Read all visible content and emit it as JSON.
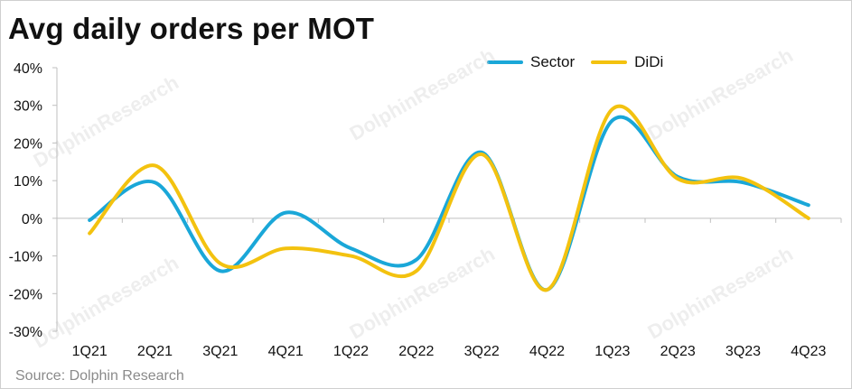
{
  "title": "Avg daily orders per MOT",
  "source": "Source: Dolphin Research",
  "legend": [
    {
      "name": "Sector",
      "color": "#1aa7d8"
    },
    {
      "name": "DiDi",
      "color": "#f3c20f"
    }
  ],
  "watermarks": [
    "DolphinResearch",
    "DolphinResearch",
    "DolphinResearch",
    "DolphinResearch",
    "DolphinResearch",
    "DolphinResearch"
  ],
  "chart_data": {
    "type": "line",
    "title": "Avg daily orders per MOT",
    "categories": [
      "1Q21",
      "2Q21",
      "3Q21",
      "4Q21",
      "1Q22",
      "2Q22",
      "3Q22",
      "4Q22",
      "1Q23",
      "2Q23",
      "3Q23",
      "4Q23"
    ],
    "series": [
      {
        "name": "Sector",
        "color": "#1aa7d8",
        "values": [
          -0.5,
          9.5,
          -14,
          1.5,
          -8,
          -11,
          17.5,
          -19,
          26,
          11,
          9.5,
          3.5
        ]
      },
      {
        "name": "DiDi",
        "color": "#f3c20f",
        "values": [
          -4,
          14,
          -12,
          -8,
          -10,
          -14,
          17,
          -19,
          29,
          10.5,
          10.5,
          0
        ]
      }
    ],
    "ylim": [
      -30,
      40
    ],
    "yticks": [
      "-30%",
      "-20%",
      "-10%",
      "0%",
      "10%",
      "20%",
      "30%",
      "40%"
    ],
    "ytick_values": [
      -30,
      -20,
      -10,
      0,
      10,
      20,
      30,
      40
    ],
    "grid": false,
    "legend_position": "top-right",
    "xlabel": "",
    "ylabel": ""
  }
}
